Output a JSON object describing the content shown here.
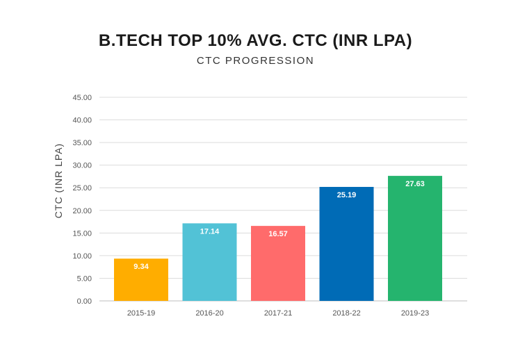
{
  "chart_data": {
    "type": "bar",
    "title": "B.TECH TOP 10% AVG. CTC (INR LPA)",
    "subtitle": "CTC PROGRESSION",
    "xlabel": "",
    "ylabel": "CTC (INR LPA)",
    "categories": [
      "2015-19",
      "2016-20",
      "2017-21",
      "2018-22",
      "2019-23"
    ],
    "values": [
      9.34,
      17.14,
      16.57,
      25.19,
      27.63
    ],
    "value_labels": [
      "9.34",
      "17.14",
      "16.57",
      "25.19",
      "27.63"
    ],
    "colors": [
      "#FFAD00",
      "#52C2D6",
      "#FF6B6B",
      "#006BB6",
      "#25B46E"
    ],
    "ylim": [
      0,
      45
    ],
    "yticks": [
      "0.00",
      "5.00",
      "10.00",
      "15.00",
      "20.00",
      "25.00",
      "30.00",
      "35.00",
      "40.00",
      "45.00"
    ],
    "grid": true,
    "legend": "none"
  }
}
